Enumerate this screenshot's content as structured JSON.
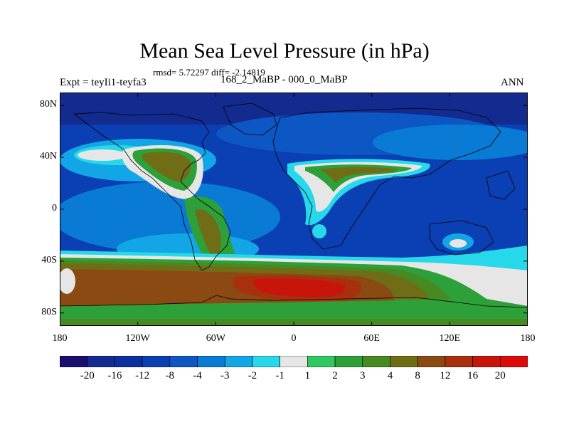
{
  "header": {
    "title": "Mean Sea Level Pressure (in hPa)",
    "stats": "rmsd= 5.72297 diff= -2.14819",
    "experiment": "Expt = teyIi1-teyfa3",
    "period": "168_2_MaBP - 000_0_MaBP",
    "season": "ANN"
  },
  "map": {
    "projection": "cylindrical equidistant",
    "lon_range": [
      -180,
      180
    ],
    "lat_range": [
      -90,
      90
    ],
    "lat_ticks": [
      {
        "value": 80,
        "label": "80N"
      },
      {
        "value": 40,
        "label": "40N"
      },
      {
        "value": 0,
        "label": "0"
      },
      {
        "value": -40,
        "label": "40S"
      },
      {
        "value": -80,
        "label": "80S"
      }
    ],
    "lon_ticks": [
      {
        "value": -180,
        "label": "180"
      },
      {
        "value": -120,
        "label": "120W"
      },
      {
        "value": -60,
        "label": "60W"
      },
      {
        "value": 0,
        "label": "0"
      },
      {
        "value": 60,
        "label": "60E"
      },
      {
        "value": 120,
        "label": "120E"
      },
      {
        "value": 180,
        "label": "180"
      }
    ]
  },
  "colorbar": {
    "labels": [
      "-20",
      "-16",
      "-12",
      "-8",
      "-4",
      "-3",
      "-2",
      "-1",
      "1",
      "2",
      "3",
      "4",
      "8",
      "12",
      "16",
      "20"
    ],
    "colors": [
      "#1a0f6e",
      "#132a8f",
      "#0a2f9e",
      "#0b3fb4",
      "#0c57c4",
      "#0a7bd4",
      "#13a6e6",
      "#27d8ea",
      "#e6e6e6",
      "#2fc95f",
      "#2ea03a",
      "#488a22",
      "#6f6e16",
      "#8a4a12",
      "#a8300d",
      "#c8150b",
      "#dd0a0a"
    ]
  }
}
